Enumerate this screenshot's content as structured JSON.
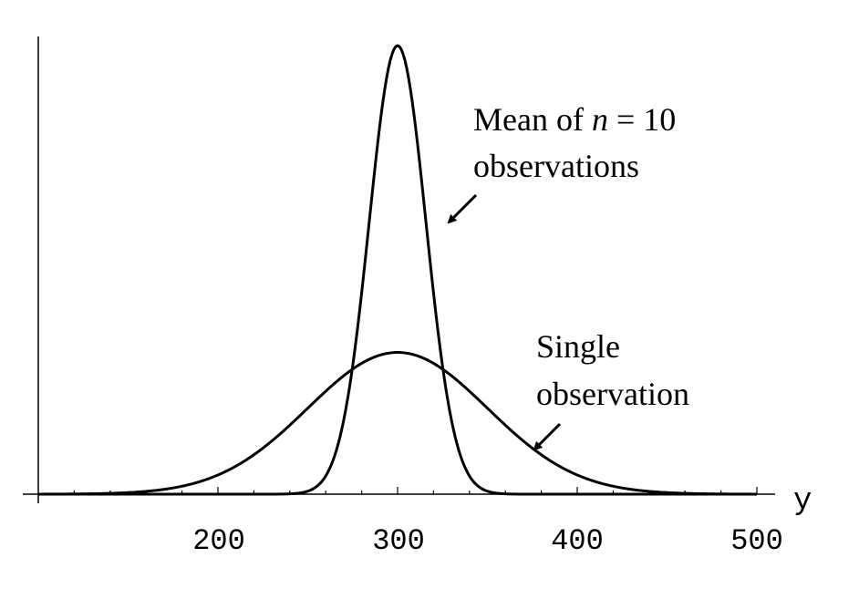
{
  "chart_data": {
    "type": "line",
    "xlabel": "y",
    "xlim": [
      100,
      500
    ],
    "ylim": [
      0,
      1
    ],
    "x_ticks": [
      {
        "value": 200,
        "label": "200"
      },
      {
        "value": 300,
        "label": "300"
      },
      {
        "value": 400,
        "label": "400"
      },
      {
        "value": 500,
        "label": "500"
      }
    ],
    "grid": false,
    "legend": "none",
    "series": [
      {
        "key": "mean",
        "distribution": "normal",
        "mean": 300,
        "sd": 15.8,
        "peak": 1.0
      },
      {
        "key": "single",
        "distribution": "normal",
        "mean": 300,
        "sd": 50,
        "peak": 0.316
      }
    ],
    "annotations": {
      "mean": {
        "line1_prefix": "Mean of ",
        "line1_var": "n",
        "line1_suffix": " = 10",
        "line2": "observations"
      },
      "single": {
        "line1": "Single",
        "line2": "observation"
      }
    }
  }
}
